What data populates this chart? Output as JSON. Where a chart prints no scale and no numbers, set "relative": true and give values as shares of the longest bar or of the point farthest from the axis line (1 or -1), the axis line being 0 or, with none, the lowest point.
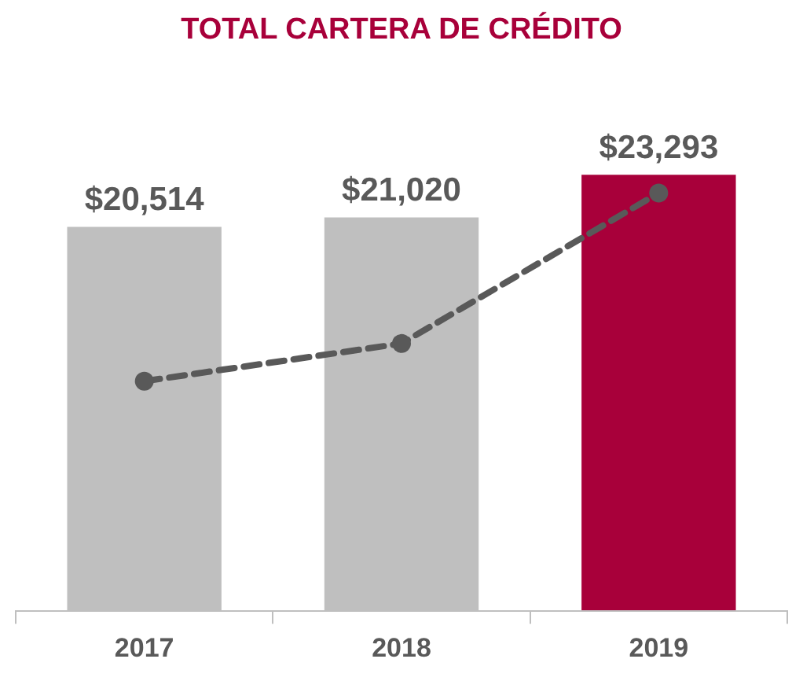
{
  "chart_data": [
    {
      "type": "bar",
      "title": "TOTAL CARTERA DE CRÉDITO",
      "categories": [
        "2017",
        "2018",
        "2019"
      ],
      "tick_labels": "x",
      "legend": false,
      "series": [
        {
          "colors": [
            "#bfbfbf",
            "#bfbfbf",
            "#a8003a"
          ],
          "values": [
            20514,
            21020,
            23293
          ],
          "value_labels": [
            "$20,514",
            "$21,020",
            "$23,293"
          ]
        }
      ]
    },
    {
      "type": "line",
      "categories": [
        "2017",
        "2018",
        "2019"
      ],
      "relative": true,
      "tick_labels": false,
      "legend": false,
      "line_style": "dashed",
      "marker": "circle",
      "series": [
        {
          "color": "#595959",
          "values": [
            0.55,
            0.64,
            1
          ]
        }
      ]
    }
  ]
}
